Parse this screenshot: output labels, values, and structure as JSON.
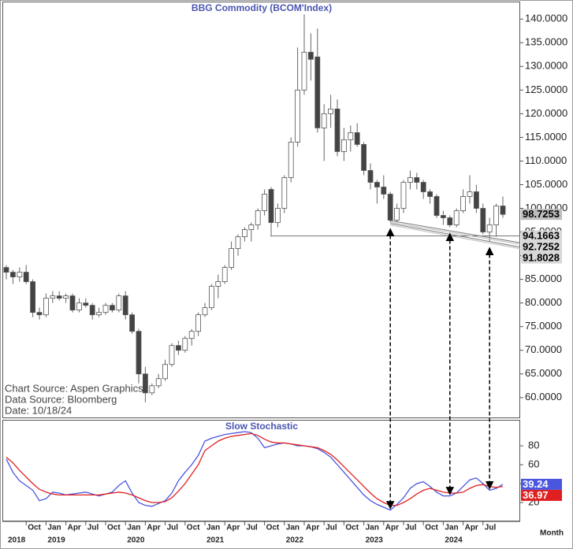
{
  "chart_data": [
    {
      "type": "candlestick",
      "title": "BBG  Commodity  (BCOM'Index)",
      "notes": [
        "Chart Source:  Aspen Graphics",
        "Data Source:  Bloomberg",
        "Date:  10/18/24"
      ],
      "up_color": "#ffffff",
      "down_color": "#444444",
      "ylim": [
        55.8,
        143.7
      ],
      "yticks": [
        {
          "value": 60,
          "label": "60.0000"
        },
        {
          "value": 65,
          "label": "65.0000"
        },
        {
          "value": 70,
          "label": "70.0000"
        },
        {
          "value": 75,
          "label": "75.0000"
        },
        {
          "value": 80,
          "label": "80.0000"
        },
        {
          "value": 85,
          "label": "85.0000"
        },
        {
          "value": 90,
          "label": "90.0000"
        },
        {
          "value": 95,
          "label": "95.0000"
        },
        {
          "value": 100,
          "label": "100.0000"
        },
        {
          "value": 105,
          "label": "105.0000"
        },
        {
          "value": 110,
          "label": "110.0000"
        },
        {
          "value": 115,
          "label": "115.0000"
        },
        {
          "value": 120,
          "label": "120.0000"
        },
        {
          "value": 125,
          "label": "125.0000"
        },
        {
          "value": 130,
          "label": "130.0000"
        },
        {
          "value": 135,
          "label": "135.0000"
        },
        {
          "value": 140,
          "label": "140.0000"
        }
      ],
      "open": [
        87.5,
        86.5,
        85.5,
        86.5,
        84.5,
        78,
        77.5,
        81,
        81.5,
        81,
        81.5,
        78.5,
        80,
        79.5,
        77.5,
        78,
        79.5,
        78.5,
        81.5,
        77.5,
        74,
        65,
        61,
        62.5,
        64,
        67,
        71,
        70,
        72.5,
        74,
        77.5,
        79,
        83.5,
        84.5,
        87.5,
        91.5,
        94,
        95.5,
        96.5,
        99.5,
        104,
        97,
        100,
        106.5,
        114,
        125,
        133,
        132,
        117,
        120,
        121,
        112,
        114.5,
        116,
        113.5,
        108,
        105.5,
        104.5,
        103,
        97.5,
        100,
        105.5,
        106.5,
        105.5,
        103.5,
        102.5,
        98.5,
        98,
        96.5,
        99.5,
        102.5,
        103.5,
        100,
        95,
        96.5,
        100.5
      ],
      "high": [
        88,
        87,
        87.5,
        88,
        85,
        79,
        82,
        82.5,
        82.5,
        82,
        82,
        81,
        81,
        80,
        79,
        80,
        80,
        82,
        82.5,
        78,
        74.5,
        66.5,
        63,
        65,
        68,
        71.5,
        72,
        73,
        74.5,
        78,
        80,
        84,
        86,
        88,
        93,
        94.5,
        96,
        97,
        100,
        104,
        104.5,
        101,
        107,
        115,
        134,
        141,
        137,
        138,
        122,
        124,
        123,
        117,
        117.5,
        118,
        114,
        109.5,
        106,
        107,
        103.5,
        101,
        106,
        108,
        107.5,
        106,
        104,
        103,
        99.5,
        98.5,
        100,
        104,
        107,
        105,
        101,
        98,
        101,
        102.5
      ],
      "low": [
        85,
        84,
        84.5,
        84,
        77,
        76.5,
        77,
        80,
        80.5,
        80,
        78,
        78,
        79,
        76.5,
        77,
        77.5,
        78,
        78,
        76.5,
        73.5,
        63,
        59,
        60.5,
        62,
        63.5,
        66.5,
        69,
        69.5,
        71,
        73,
        77,
        78.5,
        81,
        84,
        87,
        90,
        93,
        93,
        95.5,
        98.5,
        94,
        96,
        99,
        105.5,
        113,
        124,
        127,
        116,
        110,
        117,
        111,
        110,
        112,
        113,
        107,
        104,
        101,
        102,
        97,
        97,
        99,
        104,
        104,
        102,
        101,
        98,
        96.5,
        96,
        96,
        99,
        101,
        99,
        94.5,
        93,
        94,
        98
      ],
      "close": [
        86.5,
        85.5,
        86.5,
        84.5,
        78,
        77.5,
        81,
        81.5,
        81,
        81.5,
        78.5,
        80,
        79.5,
        77.5,
        78,
        79.5,
        78.5,
        81.5,
        77.5,
        74,
        65,
        61,
        62.5,
        64,
        67,
        71,
        70,
        72.5,
        74,
        77.5,
        79,
        83.5,
        84.5,
        87.5,
        91.5,
        94,
        95.5,
        96.5,
        99.5,
        103,
        97,
        100,
        106.5,
        114,
        125,
        133,
        131.5,
        117,
        120,
        121,
        112,
        114.5,
        116,
        113.5,
        108,
        105.5,
        104.5,
        103,
        97.5,
        100,
        105.5,
        106.5,
        105.5,
        103.5,
        102.5,
        98.5,
        98,
        96.5,
        99.5,
        102.5,
        103.5,
        100,
        95,
        96.5,
        100.5,
        98.7253
      ],
      "level_lines": [
        {
          "start": 94.1663,
          "value": 94.1663
        },
        {
          "start": 97.4,
          "value": 92.7252
        },
        {
          "start": 96.8,
          "value": 91.8028
        }
      ]
    },
    {
      "type": "line",
      "title": "Slow  Stochastic",
      "xlabel": "Month",
      "ylim": [
        0,
        107.5
      ],
      "yticks": [
        20,
        40,
        60,
        80
      ],
      "categories": [
        null,
        null,
        null,
        "Oct",
        null,
        null,
        "Jan",
        null,
        null,
        "Apr",
        null,
        null,
        "Jul",
        null,
        null,
        "Oct",
        null,
        null,
        "Jan",
        null,
        null,
        "Apr",
        null,
        null,
        "Jul",
        null,
        null,
        "Oct",
        null,
        null,
        "Jan",
        null,
        null,
        "Apr",
        null,
        null,
        "Jul",
        null,
        null,
        "Oct",
        null,
        null,
        "Jan",
        null,
        null,
        "Apr",
        null,
        null,
        "Jul",
        null,
        null,
        "Oct",
        null,
        null,
        "Jan",
        null,
        null,
        "Apr",
        null,
        null,
        "Jul",
        null,
        null,
        "Oct",
        null,
        null,
        "Jan",
        null,
        null,
        "Apr",
        null,
        null,
        "Jul",
        null,
        null,
        null
      ],
      "years": [
        "2018",
        null,
        null,
        null,
        null,
        null,
        "2019",
        null,
        null,
        null,
        null,
        null,
        null,
        null,
        null,
        null,
        null,
        null,
        "2020",
        null,
        null,
        null,
        null,
        null,
        null,
        null,
        null,
        null,
        null,
        null,
        "2021",
        null,
        null,
        null,
        null,
        null,
        null,
        null,
        null,
        null,
        null,
        null,
        "2022",
        null,
        null,
        null,
        null,
        null,
        null,
        null,
        null,
        null,
        null,
        null,
        "2023",
        null,
        null,
        null,
        null,
        null,
        null,
        null,
        null,
        null,
        null,
        null,
        "2024",
        null,
        null,
        null,
        null,
        null,
        null,
        null,
        null,
        null
      ],
      "series": [
        {
          "color": "#4a55e0",
          "values": [
            66,
            52,
            43,
            38,
            33,
            22,
            24,
            31,
            30,
            28,
            29,
            30,
            31,
            29,
            27,
            29,
            31,
            38,
            43,
            30,
            20,
            17,
            16,
            19,
            22,
            30,
            43,
            52,
            60,
            70,
            85,
            88,
            90,
            92,
            93,
            94,
            95,
            94,
            88,
            78,
            80,
            82,
            83,
            82,
            80,
            80,
            79,
            77,
            73,
            68,
            60,
            52,
            44,
            36,
            28,
            22,
            18,
            15,
            12,
            18,
            25,
            35,
            40,
            42,
            37,
            31,
            27,
            27,
            30,
            37,
            44,
            46,
            40,
            33,
            35,
            39.24
          ]
        },
        {
          "color": "#e02020",
          "values": [
            68,
            62,
            54,
            47,
            40,
            34,
            31,
            29,
            28,
            28,
            28,
            28,
            28,
            28,
            28,
            29,
            30,
            31,
            30,
            28,
            25,
            22,
            20,
            20,
            21,
            25,
            32,
            40,
            50,
            60,
            75,
            80,
            85,
            88,
            90,
            91,
            92,
            93,
            91,
            87,
            84,
            83,
            83,
            82,
            81,
            80,
            79,
            78,
            75,
            71,
            65,
            58,
            51,
            44,
            37,
            30,
            24,
            20,
            17,
            17,
            20,
            24,
            29,
            33,
            35,
            33,
            31,
            30,
            30,
            31,
            35,
            38,
            39,
            37,
            36,
            36.97
          ]
        }
      ]
    }
  ]
}
